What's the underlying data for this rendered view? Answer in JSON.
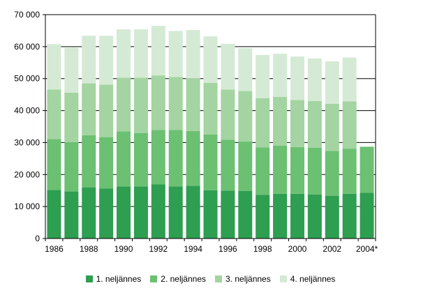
{
  "chart_data": {
    "type": "bar",
    "stacked": true,
    "title": "",
    "xlabel": "",
    "ylabel": "",
    "categories": [
      "1986",
      "1987",
      "1988",
      "1989",
      "1990",
      "1991",
      "1992",
      "1993",
      "1994",
      "1995",
      "1996",
      "1997",
      "1998",
      "1999",
      "2000",
      "2001",
      "2002",
      "2003",
      "2004*"
    ],
    "series": [
      {
        "name": "1. neljännes",
        "color": "#2E9E50",
        "values": [
          15200,
          14700,
          16000,
          15600,
          16300,
          16300,
          16900,
          16300,
          16500,
          15100,
          15000,
          14900,
          13700,
          14000,
          14000,
          13800,
          13300,
          14000,
          14300
        ]
      },
      {
        "name": "2. neljännes",
        "color": "#6BC072",
        "values": [
          15900,
          15400,
          16300,
          16100,
          17200,
          16700,
          17000,
          17600,
          17100,
          17400,
          15900,
          15400,
          14800,
          15000,
          14600,
          14600,
          14100,
          14100,
          14400
        ]
      },
      {
        "name": "3. neljännes",
        "color": "#A3D4A1",
        "values": [
          15500,
          15500,
          16200,
          16400,
          16800,
          17300,
          17100,
          16600,
          16400,
          16200,
          15700,
          15800,
          15400,
          15300,
          14700,
          14600,
          14700,
          14800,
          null
        ]
      },
      {
        "name": "4. neljännes",
        "color": "#D5EAD4",
        "values": [
          14200,
          14300,
          14900,
          15300,
          15100,
          15100,
          15500,
          14400,
          15200,
          14500,
          14300,
          13400,
          13500,
          13500,
          13600,
          13300,
          13300,
          13700,
          null
        ]
      }
    ],
    "totals": [
      60800,
      59900,
      63400,
      63400,
      65400,
      65400,
      66500,
      64900,
      65200,
      63200,
      60900,
      59500,
      57400,
      57800,
      56900,
      56300,
      55400,
      56600,
      28700
    ],
    "ylim": [
      0,
      70000
    ],
    "yticks": [
      0,
      10000,
      20000,
      30000,
      40000,
      50000,
      60000,
      70000
    ],
    "y_tick_labels": [
      "0",
      "10 000",
      "20 000",
      "30 000",
      "40 000",
      "50 000",
      "60 000",
      "70 000"
    ],
    "x_label_every": 2,
    "grid": true,
    "gridline_color": "#000000",
    "axis_color": "#000000",
    "legend_position": "bottom"
  }
}
